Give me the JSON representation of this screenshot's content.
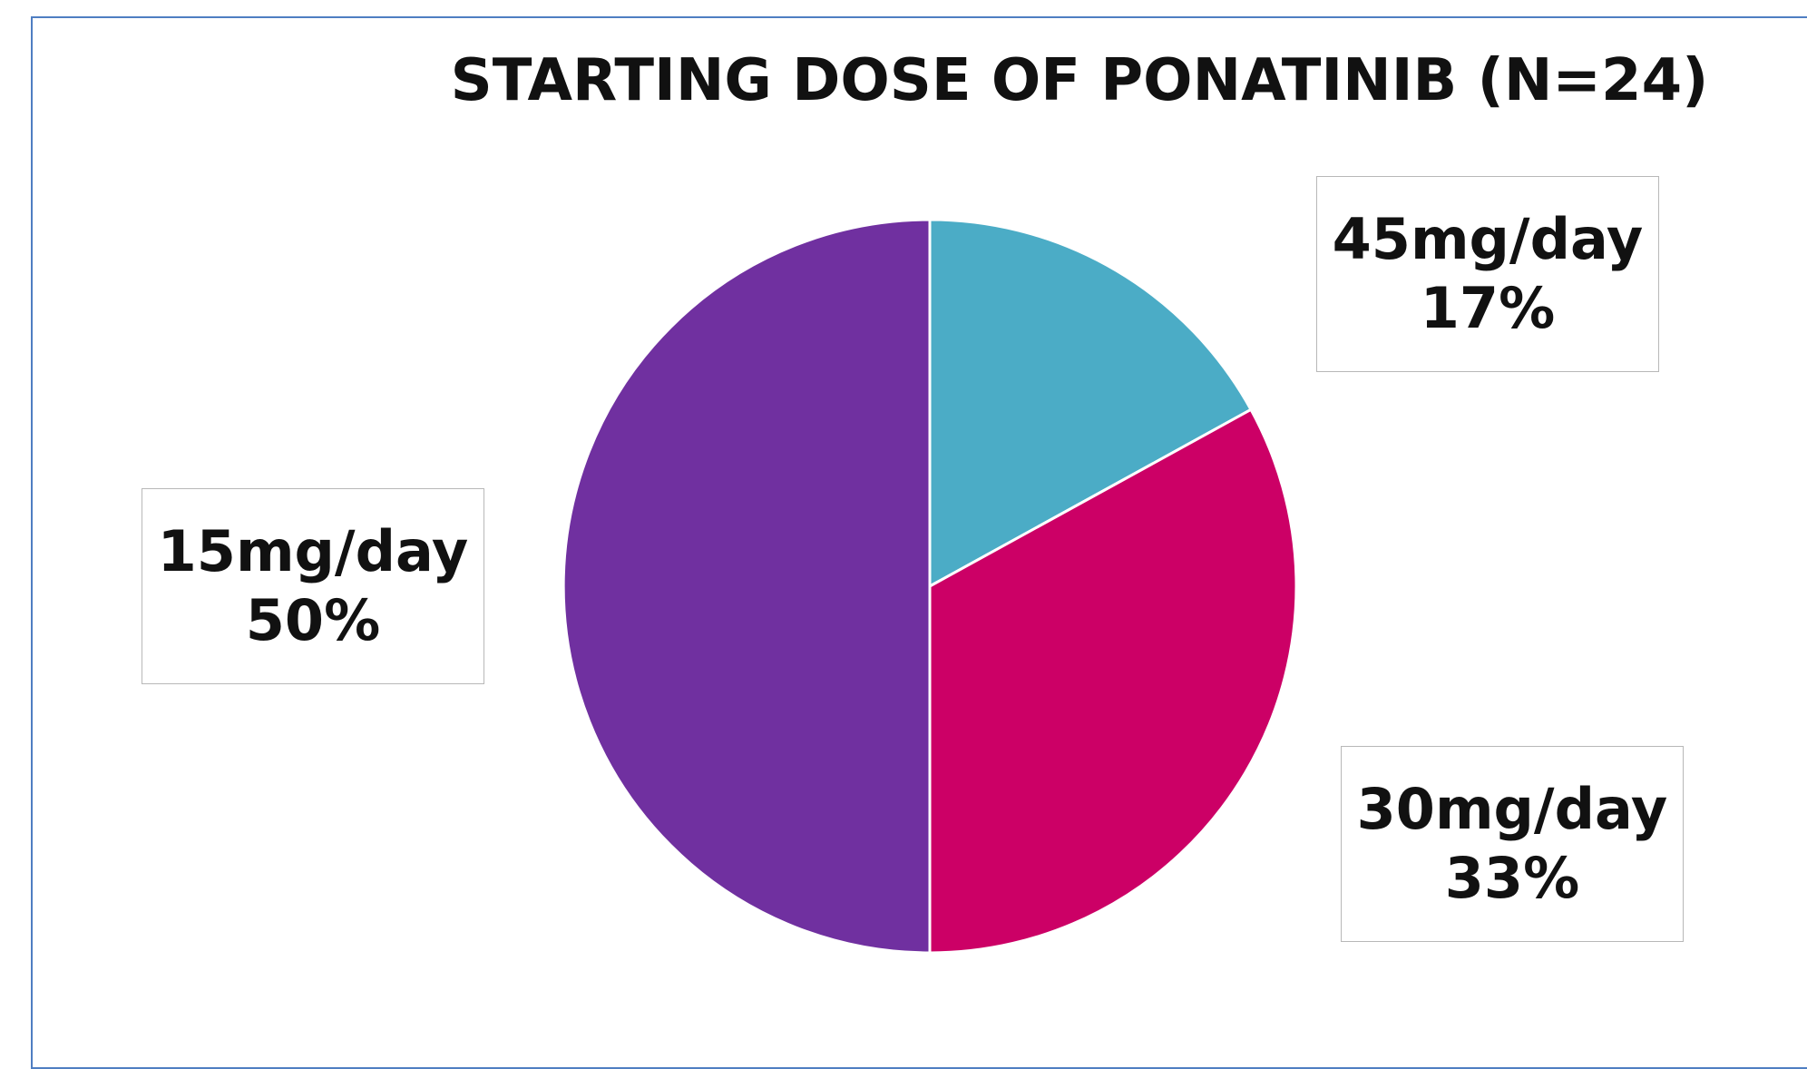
{
  "chart_data": {
    "type": "pie",
    "title": "STARTING DOSE OF PONATINIB (N=24)",
    "slices": [
      {
        "label": "45mg/day",
        "value": 17,
        "value_label": "17%",
        "color": "#4bacc6"
      },
      {
        "label": "30mg/day",
        "value": 33,
        "value_label": "33%",
        "color": "#cc0066"
      },
      {
        "label": "15mg/day",
        "value": 50,
        "value_label": "50%",
        "color": "#7030a0"
      }
    ],
    "start_angle_deg": 0,
    "direction": "clockwise",
    "slice_border_color": "#ffffff"
  },
  "frame": {
    "border_color": "#4f7ec2"
  }
}
